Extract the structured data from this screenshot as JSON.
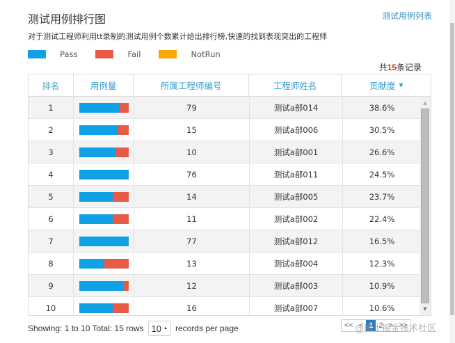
{
  "header": {
    "title": "测试用例排行图",
    "link": "测试用例列表",
    "description": "对于测试工程师利用tt录制的测试用例个数累计给出排行榜,快速的找到表现突出的工程师"
  },
  "legend": [
    {
      "label": "Pass",
      "color": "#0ea1e6"
    },
    {
      "label": "Fail",
      "color": "#e75a46"
    },
    {
      "label": "NotRun",
      "color": "#fba800"
    }
  ],
  "total": {
    "prefix": "共",
    "count": "15",
    "suffix": "条记录"
  },
  "table": {
    "columns": [
      "排名",
      "用例量",
      "所属工程师编号",
      "工程师姓名",
      "贡献度"
    ],
    "sort_icon": "caret-down-icon",
    "rows": [
      {
        "rank": "1",
        "pass_pct": 83,
        "engineer_id": "79",
        "name": "测试a部014",
        "contribution": "38.6%"
      },
      {
        "rank": "2",
        "pass_pct": 78,
        "engineer_id": "15",
        "name": "测试a部006",
        "contribution": "30.5%"
      },
      {
        "rank": "3",
        "pass_pct": 76,
        "engineer_id": "10",
        "name": "测试a部001",
        "contribution": "26.6%"
      },
      {
        "rank": "4",
        "pass_pct": 100,
        "engineer_id": "76",
        "name": "测试a部011",
        "contribution": "24.5%"
      },
      {
        "rank": "5",
        "pass_pct": 69,
        "engineer_id": "14",
        "name": "测试a部005",
        "contribution": "23.7%"
      },
      {
        "rank": "6",
        "pass_pct": 68,
        "engineer_id": "11",
        "name": "测试a部002",
        "contribution": "22.4%"
      },
      {
        "rank": "7",
        "pass_pct": 100,
        "engineer_id": "77",
        "name": "测试a部012",
        "contribution": "16.5%"
      },
      {
        "rank": "8",
        "pass_pct": 51,
        "engineer_id": "13",
        "name": "测试a部004",
        "contribution": "12.3%"
      },
      {
        "rank": "9",
        "pass_pct": 89,
        "engineer_id": "12",
        "name": "测试a部003",
        "contribution": "10.9%"
      },
      {
        "rank": "10",
        "pass_pct": 68,
        "engineer_id": "16",
        "name": "测试a部007",
        "contribution": "10.6%"
      }
    ]
  },
  "footer": {
    "showing": "Showing: 1 to 10 Total: 15 rows",
    "per_page_value": "10",
    "per_page_label": "records per page"
  },
  "pagination": {
    "items": [
      "<<",
      "<",
      "1",
      "2",
      ">",
      ">>"
    ],
    "active": "1"
  },
  "watermark": "@稀土掘金技术社区"
}
